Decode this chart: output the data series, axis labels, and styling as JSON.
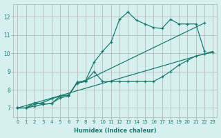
{
  "xlabel": "Humidex (Indice chaleur)",
  "ylabel": "",
  "background_color": "#d6f0f0",
  "grid_color": "#b0b0b0",
  "line_color": "#1a7a6e",
  "xlim": [
    -0.5,
    23.5
  ],
  "ylim": [
    6.5,
    12.7
  ],
  "xticks": [
    0,
    1,
    2,
    3,
    4,
    5,
    6,
    7,
    8,
    9,
    10,
    11,
    12,
    13,
    14,
    15,
    16,
    17,
    18,
    19,
    20,
    21,
    22,
    23
  ],
  "yticks": [
    7,
    8,
    9,
    10,
    11,
    12
  ],
  "line1_x": [
    0,
    1,
    2,
    3,
    4,
    5,
    6,
    7,
    8,
    9,
    10,
    11,
    12,
    13,
    14,
    15,
    16,
    17,
    18,
    19,
    20,
    21,
    22
  ],
  "line1_y": [
    7.0,
    7.0,
    7.1,
    7.2,
    7.25,
    7.55,
    7.65,
    8.4,
    8.5,
    9.5,
    10.1,
    10.6,
    11.85,
    12.25,
    11.8,
    11.6,
    11.4,
    11.35,
    11.85,
    11.6,
    11.6,
    11.6,
    10.1
  ],
  "line2_x": [
    0,
    1,
    2,
    3,
    4,
    5,
    6,
    7,
    8,
    9,
    10,
    11,
    12,
    13,
    14,
    15,
    16,
    17,
    18,
    19,
    20,
    21,
    22,
    23
  ],
  "line2_y": [
    7.0,
    7.0,
    7.2,
    7.3,
    7.5,
    7.65,
    7.7,
    8.35,
    8.45,
    9.0,
    8.45,
    8.45,
    8.45,
    8.45,
    8.45,
    8.45,
    8.45,
    8.7,
    9.0,
    9.35,
    9.6,
    9.85,
    9.95,
    10.05
  ],
  "line3_x": [
    0,
    23
  ],
  "line3_y": [
    7.0,
    10.1
  ],
  "line4_x": [
    0,
    1,
    2,
    3,
    4,
    5,
    6,
    7,
    8,
    22
  ],
  "line4_y": [
    7.0,
    7.0,
    7.3,
    7.2,
    7.25,
    7.65,
    7.7,
    8.4,
    8.5,
    11.65
  ]
}
